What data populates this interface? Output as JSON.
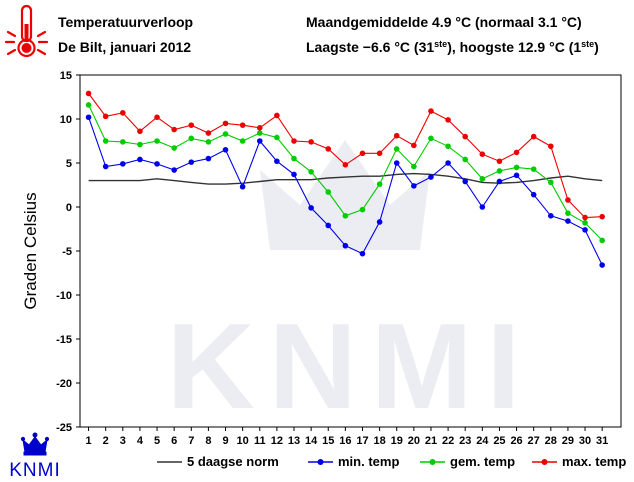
{
  "header": {
    "title": "Temperatuurverloop",
    "subtitle": "De Bilt, januari 2012",
    "stat1": "Maandgemiddelde 4.9 °C (normaal 3.1 °C)",
    "stat2_prefix": "Laagste −6.6 °C (31",
    "stat2_sup1": "ste",
    "stat2_middle": "), hoogste 12.9 °C (1",
    "stat2_sup2": "ste",
    "stat2_suffix": ")"
  },
  "logo": {
    "text": "KNMI",
    "watermark": "KNMI"
  },
  "colors": {
    "norm": "#333333",
    "min": "#0000ee",
    "mean": "#00cc00",
    "max": "#ee0000",
    "watermark": "#ececf3"
  },
  "chart_data": {
    "type": "line",
    "ylabel": "Graden Celsius",
    "ylim": [
      -25,
      15
    ],
    "yticks": [
      15,
      10,
      5,
      0,
      -5,
      -10,
      -15,
      -20,
      -25
    ],
    "x": [
      1,
      2,
      3,
      4,
      5,
      6,
      7,
      8,
      9,
      10,
      11,
      12,
      13,
      14,
      15,
      16,
      17,
      18,
      19,
      20,
      21,
      22,
      23,
      24,
      25,
      26,
      27,
      28,
      29,
      30,
      31
    ],
    "legend_position": "bottom",
    "series": [
      {
        "name": "5 daagse norm",
        "marker": false,
        "values": [
          3.0,
          3.0,
          3.0,
          3.0,
          3.2,
          3.0,
          2.8,
          2.6,
          2.6,
          2.7,
          2.9,
          3.1,
          3.1,
          3.1,
          3.3,
          3.4,
          3.5,
          3.5,
          3.7,
          3.8,
          3.7,
          3.5,
          3.2,
          2.8,
          2.7,
          2.8,
          3.0,
          3.3,
          3.5,
          3.2,
          3.0
        ]
      },
      {
        "name": "min. temp",
        "marker": true,
        "values": [
          10.2,
          4.6,
          4.9,
          5.4,
          4.9,
          4.2,
          5.1,
          5.5,
          6.5,
          2.3,
          7.5,
          5.2,
          3.7,
          -0.1,
          -2.1,
          -4.4,
          -5.3,
          -1.7,
          5.0,
          2.4,
          3.4,
          5.0,
          2.9,
          0.0,
          2.9,
          3.6,
          1.4,
          -1.0,
          -1.6,
          -2.6,
          -6.6
        ]
      },
      {
        "name": "gem. temp",
        "marker": true,
        "values": [
          11.6,
          7.5,
          7.4,
          7.1,
          7.5,
          6.7,
          7.8,
          7.4,
          8.3,
          7.5,
          8.4,
          7.9,
          5.5,
          4.0,
          1.7,
          -1.0,
          -0.3,
          2.6,
          6.6,
          4.6,
          7.8,
          6.9,
          5.4,
          3.2,
          4.1,
          4.5,
          4.3,
          2.8,
          -0.7,
          -1.8,
          -3.8
        ]
      },
      {
        "name": "max. temp",
        "marker": true,
        "values": [
          12.9,
          10.3,
          10.7,
          8.6,
          10.2,
          8.8,
          9.3,
          8.4,
          9.5,
          9.3,
          9.0,
          10.4,
          7.5,
          7.4,
          6.6,
          4.8,
          6.1,
          6.1,
          8.1,
          7.0,
          10.9,
          9.9,
          8.0,
          6.0,
          5.2,
          6.2,
          8.0,
          6.9,
          0.8,
          -1.2,
          -1.1
        ]
      }
    ]
  }
}
